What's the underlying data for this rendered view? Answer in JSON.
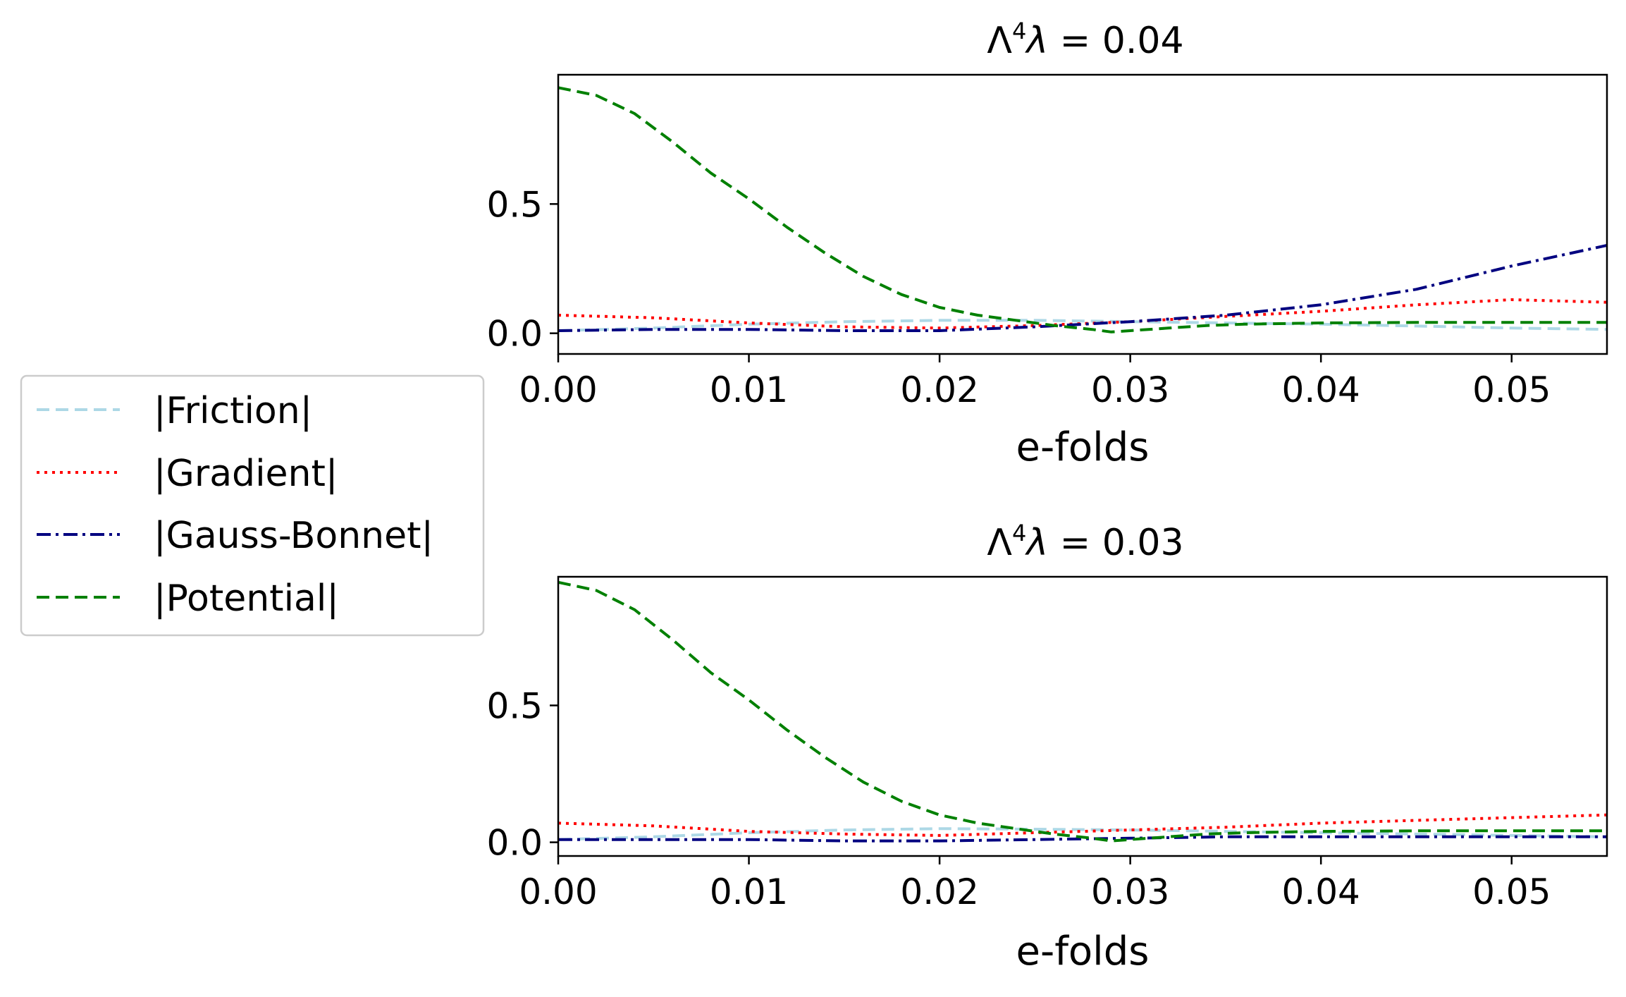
{
  "legend": {
    "entries": [
      {
        "label": "|Friction|",
        "color": "#add8e6",
        "style": "dashed"
      },
      {
        "label": "|Gradient|",
        "color": "#ff0000",
        "style": "dotted"
      },
      {
        "label": "|Gauss-Bonnet|",
        "color": "#000080",
        "style": "dashdot"
      },
      {
        "label": "|Potential|",
        "color": "#008000",
        "style": "dashed"
      }
    ]
  },
  "chart_data": [
    {
      "type": "line",
      "title": "Λ⁴λ = 0.04",
      "title_prefix": "Λ",
      "title_sup": "4",
      "title_var": "λ",
      "title_value": " = 0.04",
      "xlabel": "e-folds",
      "ylabel": "",
      "xlim": [
        0,
        0.055
      ],
      "ylim": [
        -0.08,
        1.0
      ],
      "xticks": [
        0.0,
        0.01,
        0.02,
        0.03,
        0.04,
        0.05
      ],
      "xtick_labels": [
        "0.00",
        "0.01",
        "0.02",
        "0.03",
        "0.04",
        "0.05"
      ],
      "yticks": [
        0.0,
        0.5
      ],
      "ytick_labels": [
        "0.0",
        "0.5"
      ],
      "series": [
        {
          "name": "|Friction|",
          "x": [
            0,
            0.005,
            0.01,
            0.015,
            0.02,
            0.025,
            0.03,
            0.035,
            0.04,
            0.045,
            0.05,
            0.055
          ],
          "values": [
            0.01,
            0.02,
            0.035,
            0.045,
            0.05,
            0.05,
            0.045,
            0.04,
            0.035,
            0.028,
            0.02,
            0.015
          ]
        },
        {
          "name": "|Gradient|",
          "x": [
            0,
            0.005,
            0.01,
            0.015,
            0.02,
            0.025,
            0.03,
            0.035,
            0.04,
            0.045,
            0.05,
            0.055
          ],
          "values": [
            0.07,
            0.06,
            0.04,
            0.025,
            0.02,
            0.03,
            0.045,
            0.065,
            0.085,
            0.11,
            0.13,
            0.12
          ]
        },
        {
          "name": "|Gauss-Bonnet|",
          "x": [
            0,
            0.005,
            0.01,
            0.015,
            0.02,
            0.025,
            0.03,
            0.035,
            0.04,
            0.045,
            0.05,
            0.055
          ],
          "values": [
            0.01,
            0.015,
            0.015,
            0.01,
            0.01,
            0.025,
            0.045,
            0.07,
            0.11,
            0.17,
            0.26,
            0.34
          ]
        },
        {
          "name": "|Potential|",
          "x": [
            0,
            0.002,
            0.004,
            0.006,
            0.008,
            0.01,
            0.012,
            0.014,
            0.016,
            0.018,
            0.02,
            0.022,
            0.024,
            0.026,
            0.028,
            0.029,
            0.03,
            0.032,
            0.034,
            0.036,
            0.04,
            0.045,
            0.05,
            0.055
          ],
          "values": [
            0.95,
            0.92,
            0.85,
            0.74,
            0.62,
            0.52,
            0.41,
            0.31,
            0.22,
            0.15,
            0.1,
            0.07,
            0.05,
            0.03,
            0.015,
            0.005,
            0.01,
            0.02,
            0.03,
            0.035,
            0.04,
            0.042,
            0.042,
            0.042
          ]
        }
      ]
    },
    {
      "type": "line",
      "title": "Λ⁴λ = 0.03",
      "title_prefix": "Λ",
      "title_sup": "4",
      "title_var": "λ",
      "title_value": " = 0.03",
      "xlabel": "e-folds",
      "ylabel": "",
      "xlim": [
        0,
        0.055
      ],
      "ylim": [
        -0.05,
        0.97
      ],
      "xticks": [
        0.0,
        0.01,
        0.02,
        0.03,
        0.04,
        0.05
      ],
      "xtick_labels": [
        "0.00",
        "0.01",
        "0.02",
        "0.03",
        "0.04",
        "0.05"
      ],
      "yticks": [
        0.0,
        0.5
      ],
      "ytick_labels": [
        "0.0",
        "0.5"
      ],
      "series": [
        {
          "name": "|Friction|",
          "x": [
            0,
            0.005,
            0.01,
            0.015,
            0.02,
            0.025,
            0.03,
            0.035,
            0.04,
            0.045,
            0.05,
            0.055
          ],
          "values": [
            0.01,
            0.02,
            0.035,
            0.045,
            0.05,
            0.048,
            0.045,
            0.04,
            0.035,
            0.03,
            0.025,
            0.02
          ]
        },
        {
          "name": "|Gradient|",
          "x": [
            0,
            0.005,
            0.01,
            0.015,
            0.02,
            0.025,
            0.03,
            0.035,
            0.04,
            0.045,
            0.05,
            0.055
          ],
          "values": [
            0.07,
            0.06,
            0.04,
            0.03,
            0.025,
            0.035,
            0.045,
            0.055,
            0.07,
            0.08,
            0.09,
            0.1
          ]
        },
        {
          "name": "|Gauss-Bonnet|",
          "x": [
            0,
            0.005,
            0.01,
            0.015,
            0.02,
            0.025,
            0.03,
            0.035,
            0.04,
            0.045,
            0.05,
            0.055
          ],
          "values": [
            0.01,
            0.01,
            0.01,
            0.005,
            0.005,
            0.01,
            0.015,
            0.02,
            0.02,
            0.02,
            0.02,
            0.02
          ]
        },
        {
          "name": "|Potential|",
          "x": [
            0,
            0.002,
            0.004,
            0.006,
            0.008,
            0.01,
            0.012,
            0.014,
            0.016,
            0.018,
            0.02,
            0.022,
            0.024,
            0.026,
            0.028,
            0.029,
            0.03,
            0.032,
            0.034,
            0.036,
            0.04,
            0.045,
            0.05,
            0.055
          ],
          "values": [
            0.95,
            0.92,
            0.85,
            0.74,
            0.62,
            0.52,
            0.41,
            0.31,
            0.22,
            0.15,
            0.1,
            0.07,
            0.05,
            0.03,
            0.015,
            0.005,
            0.01,
            0.02,
            0.03,
            0.035,
            0.04,
            0.042,
            0.042,
            0.042
          ]
        }
      ]
    }
  ]
}
